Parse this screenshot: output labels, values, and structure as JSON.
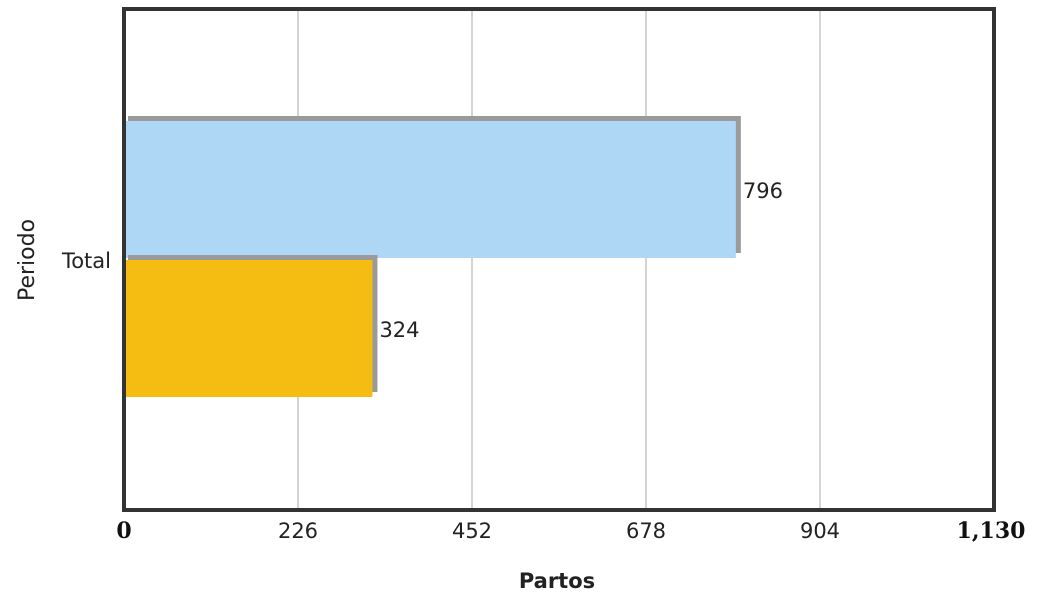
{
  "chart_data": {
    "type": "bar",
    "orientation": "horizontal",
    "categories": [
      "Total"
    ],
    "series": [
      {
        "values": [
          796
        ],
        "color": "#aed6f5"
      },
      {
        "values": [
          324
        ],
        "color": "#f5bd12"
      }
    ],
    "xlabel": "Partos",
    "ylabel": "Periodo",
    "xlim": [
      0,
      1130
    ],
    "xticks": [
      "0",
      "226",
      "452",
      "678",
      "904",
      "1,130"
    ],
    "grid": true,
    "data_labels": [
      "796",
      "324"
    ]
  }
}
